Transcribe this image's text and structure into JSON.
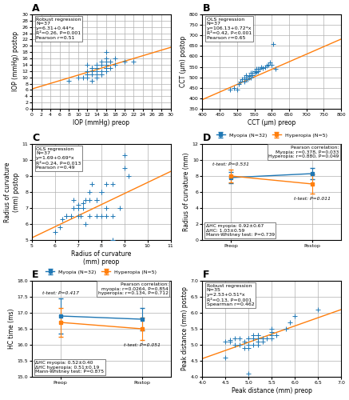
{
  "chart_data": [
    {
      "type": "scatter",
      "title": "A",
      "xlabel": "IOP (mmHg) preop",
      "ylabel": "IOP (mmHg) postop",
      "xlim": [
        0,
        30
      ],
      "ylim": [
        0,
        30
      ],
      "xticks": [
        0,
        2,
        4,
        6,
        8,
        10,
        12,
        14,
        16,
        18,
        20,
        22,
        24,
        26,
        28,
        30
      ],
      "yticks": [
        0,
        2,
        4,
        6,
        8,
        10,
        12,
        14,
        16,
        18,
        20,
        22,
        24,
        26,
        28,
        30
      ],
      "grid": true,
      "annotations": [
        "Robust regression\nN=37\ny=6.31+0.44*x\nR²=0.26, P=0.001\nPearson r=0.51"
      ],
      "series": [
        {
          "type": "scatter",
          "marker": "plus",
          "x": [
            12,
            12,
            12,
            13,
            13,
            13,
            13,
            14,
            14,
            14,
            14,
            14,
            15,
            15,
            15,
            15,
            16,
            16,
            16,
            16,
            16,
            16,
            17,
            17,
            18,
            18,
            20,
            22,
            8,
            10,
            11,
            12,
            12,
            13,
            14,
            15,
            16
          ],
          "values": [
            11,
            12,
            14,
            9,
            11,
            12,
            13,
            10,
            11,
            12,
            13,
            14,
            11,
            12,
            14,
            15,
            12,
            13,
            14,
            15,
            16,
            18,
            13,
            15,
            14,
            16,
            15,
            15,
            9,
            10,
            10,
            10,
            11,
            13,
            14,
            11,
            13
          ]
        },
        {
          "type": "line",
          "x": [
            0,
            30
          ],
          "values": [
            6.31,
            19.51
          ]
        }
      ]
    },
    {
      "type": "scatter",
      "title": "B",
      "xlabel": "CCT (μm) preop",
      "ylabel": "CCT (μm) postop",
      "xlim": [
        400,
        800
      ],
      "ylim": [
        350,
        800
      ],
      "xticks": [
        400,
        450,
        500,
        550,
        600,
        650,
        700,
        750,
        800
      ],
      "yticks": [
        350,
        400,
        450,
        500,
        550,
        600,
        650,
        700,
        750,
        800
      ],
      "grid": true,
      "annotations": [
        "OLS regression\nN=37\ny=106.13+0.72*x\nR²=0.42, P<0.001\nPearson r=0.65"
      ],
      "series": [
        {
          "type": "scatter",
          "marker": "plus",
          "x": [
            520,
            520,
            525,
            525,
            530,
            530,
            535,
            535,
            540,
            540,
            540,
            545,
            545,
            550,
            550,
            555,
            555,
            560,
            560,
            565,
            570,
            575,
            580,
            585,
            590,
            595,
            600,
            605,
            610,
            480,
            490,
            500,
            505,
            510,
            515,
            520,
            525
          ],
          "values": [
            480,
            490,
            490,
            500,
            490,
            500,
            500,
            505,
            500,
            510,
            520,
            510,
            520,
            520,
            530,
            525,
            540,
            530,
            540,
            540,
            550,
            545,
            550,
            555,
            560,
            570,
            560,
            660,
            540,
            440,
            450,
            440,
            470,
            480,
            490,
            500,
            510
          ]
        },
        {
          "type": "line",
          "x": [
            400,
            800
          ],
          "values": [
            394.13,
            682.13
          ]
        }
      ]
    },
    {
      "type": "scatter",
      "title": "C",
      "xlabel": "Radius of curvature\n(mm) preop",
      "ylabel": "Radius of curvature\n(mm) postop",
      "xlim": [
        5,
        11
      ],
      "ylim": [
        5,
        11
      ],
      "xticks": [
        5,
        6,
        7,
        8,
        9,
        10,
        11
      ],
      "yticks": [
        5,
        6,
        7,
        8,
        9,
        10,
        11
      ],
      "grid": true,
      "annotations": [
        "OLS regression\nN=37\ny=1.69+0.69*x\nR²=0.24, P=0.013\nPearson r=0.49"
      ],
      "series": [
        {
          "type": "scatter",
          "marker": "plus",
          "x": [
            6.2,
            6.5,
            6.5,
            6.8,
            6.8,
            7.0,
            7.0,
            7.0,
            7.0,
            7.2,
            7.2,
            7.3,
            7.5,
            7.5,
            7.5,
            7.8,
            7.8,
            8.0,
            8.0,
            8.2,
            8.2,
            8.5,
            8.5,
            8.8,
            9.0,
            9.2,
            6.0,
            6.3,
            6.7,
            7.1,
            7.3,
            7.6,
            7.8,
            8.0,
            8.2,
            8.5,
            9.0
          ],
          "values": [
            5.8,
            6.5,
            6.5,
            7.0,
            7.5,
            7.0,
            7.0,
            7.2,
            6.5,
            7.0,
            7.3,
            6.0,
            7.5,
            8.0,
            6.5,
            6.5,
            7.5,
            6.5,
            8.0,
            7.0,
            8.5,
            6.5,
            8.5,
            7.0,
            9.5,
            9.0,
            5.5,
            6.3,
            6.5,
            6.5,
            7.5,
            8.5,
            7.5,
            8.0,
            6.5,
            5.0,
            10.3
          ]
        },
        {
          "type": "line",
          "x": [
            5,
            11
          ],
          "values": [
            5.14,
            9.28
          ]
        }
      ]
    },
    {
      "type": "line",
      "title": "D",
      "ylabel": "Radius of curvature (mm)",
      "categories": [
        "Preop",
        "Postop"
      ],
      "ylim": [
        0,
        12
      ],
      "yticks": [
        0,
        2,
        4,
        6,
        8,
        10,
        12
      ],
      "grid": true,
      "legend": "upper center",
      "annotations": [
        "Pearson correlation:\nMyopia: r=0.378, P=0.033\nHyperopia: r=0.880, P=0.049",
        "t-test: P=0.531",
        "t-test: P=0.011",
        "ΔHC myopia: 0.92±0.67\nΔHC: 1.03±0.59\nMann-Whitney test: P=0.739"
      ],
      "series": [
        {
          "name": "Myopia (N=32)",
          "marker": "square",
          "values": [
            7.8,
            8.3
          ],
          "errors": [
            0.7,
            0.7
          ]
        },
        {
          "name": "Hyperopia (N=5)",
          "marker": "square",
          "values": [
            8.0,
            7.0
          ],
          "errors": [
            0.8,
            1.2
          ]
        }
      ]
    },
    {
      "type": "line",
      "title": "E",
      "ylabel": "HC time (ms)",
      "categories": [
        "Preop",
        "Postop"
      ],
      "ylim": [
        15,
        18
      ],
      "yticks": [
        15.0,
        15.5,
        16.0,
        16.5,
        17.0,
        17.5,
        18.0
      ],
      "grid": true,
      "legend": "upper center",
      "annotations": [
        "Pearson correlation:\nmyopia: r=0.0264, P=0.854\nhyperopia: r=0.134, P=0.712",
        "t-test: P=0.417",
        "t-test: P=0.051",
        "ΔHC myopia: 0.52±0.40\nΔHC hyperopia: 0.51±0.19\nMann-Whitney test: P=0.875"
      ],
      "series": [
        {
          "name": "Myopia (N=32)",
          "marker": "square",
          "values": [
            16.9,
            16.8
          ],
          "errors": [
            0.55,
            0.35
          ]
        },
        {
          "name": "Hyperopia (N=5)",
          "marker": "square",
          "values": [
            16.7,
            16.5
          ],
          "errors": [
            0.45,
            0.35
          ]
        }
      ]
    },
    {
      "type": "scatter",
      "title": "F",
      "xlabel": "Peak distance (mm) preop",
      "ylabel": "Peak distance (mm) postop",
      "xlim": [
        4,
        7
      ],
      "ylim": [
        4,
        7
      ],
      "xticks": [
        4.0,
        4.5,
        5.0,
        5.5,
        6.0,
        6.5,
        7.0
      ],
      "yticks": [
        4.0,
        4.5,
        5.0,
        5.5,
        6.0,
        6.5,
        7.0
      ],
      "grid": true,
      "annotations": [
        "Robust regression\nN=35\ny=2.53+0.51*x\nR²=0.13, P=0.001\nSpearman r=0.462"
      ],
      "series": [
        {
          "type": "scatter",
          "marker": "plus",
          "x": [
            4.5,
            4.5,
            4.6,
            4.7,
            4.8,
            4.8,
            4.9,
            4.9,
            5.0,
            5.0,
            5.0,
            5.0,
            5.1,
            5.1,
            5.1,
            5.2,
            5.2,
            5.2,
            5.2,
            5.3,
            5.3,
            5.4,
            5.5,
            5.5,
            5.5,
            5.5,
            5.6,
            5.8,
            5.9,
            6.0,
            6.5,
            4.6,
            4.7,
            5.0,
            5.2
          ],
          "values": [
            4.6,
            5.1,
            5.1,
            5.0,
            5.0,
            5.2,
            4.9,
            5.1,
            4.1,
            4.9,
            5.0,
            5.2,
            5.0,
            5.2,
            5.3,
            5.0,
            5.1,
            5.2,
            5.3,
            5.1,
            5.2,
            5.2,
            5.2,
            5.3,
            5.4,
            5.5,
            5.3,
            5.5,
            5.7,
            5.9,
            6.1,
            5.15,
            5.2,
            5.2,
            5.3
          ]
        },
        {
          "type": "line",
          "x": [
            4.0,
            7.0
          ],
          "values": [
            4.57,
            6.1
          ]
        }
      ]
    }
  ]
}
